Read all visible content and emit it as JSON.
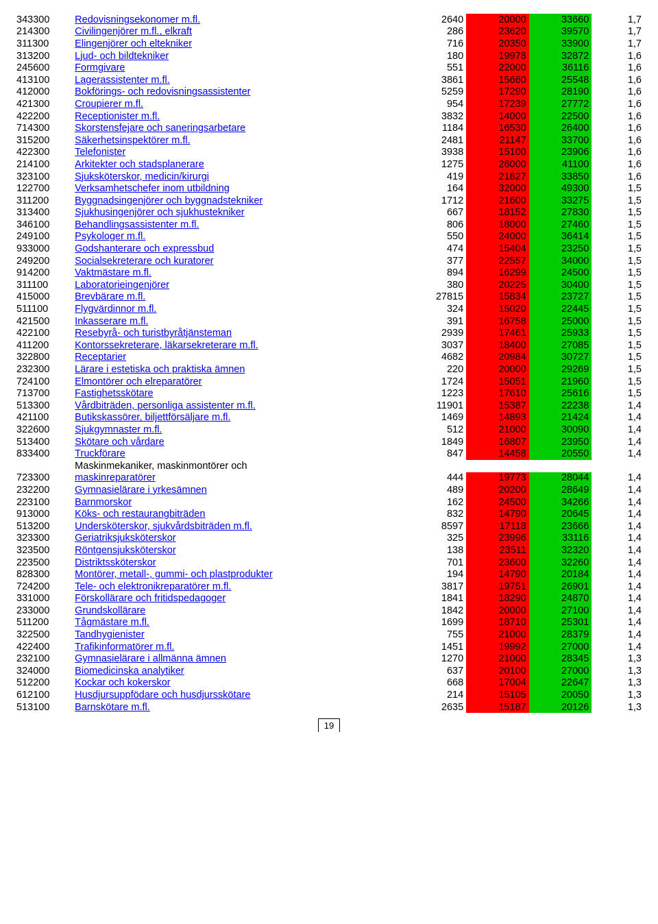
{
  "page_number": "19",
  "colors": {
    "red": "#ff0000",
    "green": "#00cc00",
    "link": "#0000ee"
  },
  "rows": [
    {
      "code": "343300",
      "title": "Redovisningsekonomer m.fl.",
      "v1": "2640",
      "v2": "20000",
      "v3": "33660",
      "ratio": "1,7"
    },
    {
      "code": "214300",
      "title": "Civilingenjörer m.fl., elkraft",
      "v1": "286",
      "v2": "23620",
      "v3": "39570",
      "ratio": "1,7"
    },
    {
      "code": "311300",
      "title": "Elingenjörer och eltekniker",
      "v1": "716",
      "v2": "20350",
      "v3": "33900",
      "ratio": "1,7"
    },
    {
      "code": "313200",
      "title": "Ljud- och bildtekniker",
      "v1": "180",
      "v2": "19978",
      "v3": "32872",
      "ratio": "1,6"
    },
    {
      "code": "245600",
      "title": "Formgivare",
      "v1": "551",
      "v2": "22000",
      "v3": "36116",
      "ratio": "1,6"
    },
    {
      "code": "413100",
      "title": "Lagerassistenter m.fl.",
      "v1": "3861",
      "v2": "15660",
      "v3": "25548",
      "ratio": "1,6"
    },
    {
      "code": "412000",
      "title": "Bokförings- och redovisningsassistenter",
      "v1": "5259",
      "v2": "17290",
      "v3": "28190",
      "ratio": "1,6"
    },
    {
      "code": "421300",
      "title": "Croupierer m.fl.",
      "v1": "954",
      "v2": "17239",
      "v3": "27772",
      "ratio": "1,6"
    },
    {
      "code": "422200",
      "title": "Receptionister m.fl.",
      "v1": "3832",
      "v2": "14000",
      "v3": "22500",
      "ratio": "1,6"
    },
    {
      "code": "714300",
      "title": "Skorstensfejare och saneringsarbetare",
      "v1": "1184",
      "v2": "16530",
      "v3": "26400",
      "ratio": "1,6"
    },
    {
      "code": "315200",
      "title": "Säkerhetsinspektörer m.fl.",
      "v1": "2481",
      "v2": "21147",
      "v3": "33700",
      "ratio": "1,6"
    },
    {
      "code": "422300",
      "title": "Telefonister",
      "v1": "3938",
      "v2": "15100",
      "v3": "23906",
      "ratio": "1,6"
    },
    {
      "code": "214100",
      "title": "Arkitekter och stadsplanerare",
      "v1": "1275",
      "v2": "26000",
      "v3": "41100",
      "ratio": "1,6"
    },
    {
      "code": "323100",
      "title": "Sjuksköterskor, medicin/kirurgi",
      "v1": "419",
      "v2": "21827",
      "v3": "33850",
      "ratio": "1,6"
    },
    {
      "code": "122700",
      "title": "Verksamhetschefer inom utbildning",
      "v1": "164",
      "v2": "32000",
      "v3": "49300",
      "ratio": "1,5"
    },
    {
      "code": "311200",
      "title": "Byggnadsingenjörer och byggnadstekniker",
      "v1": "1712",
      "v2": "21600",
      "v3": "33275",
      "ratio": "1,5"
    },
    {
      "code": "313400",
      "title": "Sjukhusingenjörer och sjukhustekniker",
      "v1": "667",
      "v2": "18152",
      "v3": "27830",
      "ratio": "1,5"
    },
    {
      "code": "346100",
      "title": "Behandlingsassistenter m.fl.",
      "v1": "806",
      "v2": "18000",
      "v3": "27460",
      "ratio": "1,5"
    },
    {
      "code": "249100",
      "title": "Psykologer m.fl.",
      "v1": "550",
      "v2": "24000",
      "v3": "36414",
      "ratio": "1,5"
    },
    {
      "code": "933000",
      "title": "Godshanterare och expressbud",
      "v1": "474",
      "v2": "15404",
      "v3": "23250",
      "ratio": "1,5"
    },
    {
      "code": "249200",
      "title": "Socialsekreterare och kuratorer",
      "v1": "377",
      "v2": "22557",
      "v3": "34000",
      "ratio": "1,5"
    },
    {
      "code": "914200",
      "title": "Vaktmästare m.fl.",
      "v1": "894",
      "v2": "16299",
      "v3": "24500",
      "ratio": "1,5"
    },
    {
      "code": "311100",
      "title": "Laboratorieingenjörer",
      "v1": "380",
      "v2": "20225",
      "v3": "30400",
      "ratio": "1,5"
    },
    {
      "code": "415000",
      "title": "Brevbärare m.fl.",
      "v1": "27815",
      "v2": "15834",
      "v3": "23727",
      "ratio": "1,5"
    },
    {
      "code": "511100",
      "title": "Flygvärdinnor m.fl.",
      "v1": "324",
      "v2": "15020",
      "v3": "22445",
      "ratio": "1,5"
    },
    {
      "code": "421500",
      "title": "Inkasserare m.fl.",
      "v1": "391",
      "v2": "16758",
      "v3": "25000",
      "ratio": "1,5"
    },
    {
      "code": "422100",
      "title": "Resebyrå- och turistbyråtjänsteman",
      "v1": "2939",
      "v2": "17461",
      "v3": "25933",
      "ratio": "1,5"
    },
    {
      "code": "411200",
      "title": "Kontorssekreterare, läkarsekreterare m.fl.",
      "v1": "3037",
      "v2": "18400",
      "v3": "27085",
      "ratio": "1,5"
    },
    {
      "code": "322800",
      "title": "Receptarier",
      "v1": "4682",
      "v2": "20984",
      "v3": "30727",
      "ratio": "1,5"
    },
    {
      "code": "232300",
      "title": "Lärare i estetiska och praktiska ämnen",
      "v1": "220",
      "v2": "20000",
      "v3": "29269",
      "ratio": "1,5"
    },
    {
      "code": "724100",
      "title": "Elmontörer och elreparatörer",
      "v1": "1724",
      "v2": "15051",
      "v3": "21960",
      "ratio": "1,5"
    },
    {
      "code": "713700",
      "title": "Fastighetsskötare",
      "v1": "1223",
      "v2": "17610",
      "v3": "25616",
      "ratio": "1,5"
    },
    {
      "code": "513300",
      "title": "Vårdbiträden, personliga assistenter m.fl.",
      "v1": "11901",
      "v2": "15387",
      "v3": "22238",
      "ratio": "1,4"
    },
    {
      "code": "421100",
      "title": "Butikskassörer, biljettförsäljare m.fl.",
      "v1": "1469",
      "v2": "14893",
      "v3": "21424",
      "ratio": "1,4"
    },
    {
      "code": "322600",
      "title": "Sjukgymnaster m.fl.",
      "v1": "512",
      "v2": "21000",
      "v3": "30090",
      "ratio": "1,4"
    },
    {
      "code": "513400",
      "title": "Skötare och vårdare",
      "v1": "1849",
      "v2": "16807",
      "v3": "23950",
      "ratio": "1,4"
    },
    {
      "code": "833400",
      "title": "Truckförare",
      "v1": "847",
      "v2": "14458",
      "v3": "20550",
      "ratio": "1,4"
    },
    {
      "code": "723300",
      "title": "Maskinmekaniker, maskinmontörer och maskinreparatörer",
      "v1": "444",
      "v2": "19773",
      "v3": "28044",
      "ratio": "1,4",
      "wrap": true
    },
    {
      "code": "232200",
      "title": "Gymnasielärare i yrkesämnen",
      "v1": "489",
      "v2": "20200",
      "v3": "28649",
      "ratio": "1,4"
    },
    {
      "code": "223100",
      "title": "Barnmorskor",
      "v1": "162",
      "v2": "24500",
      "v3": "34266",
      "ratio": "1,4"
    },
    {
      "code": "913000",
      "title": "Köks- och restaurangbiträden",
      "v1": "832",
      "v2": "14790",
      "v3": "20645",
      "ratio": "1,4"
    },
    {
      "code": "513200",
      "title": "Undersköterskor, sjukvårdsbiträden m.fl.",
      "v1": "8597",
      "v2": "17118",
      "v3": "23666",
      "ratio": "1,4"
    },
    {
      "code": "323300",
      "title": "Geriatriksjuksköterskor",
      "v1": "325",
      "v2": "23996",
      "v3": "33116",
      "ratio": "1,4"
    },
    {
      "code": "323500",
      "title": "Röntgensjuksköterskor",
      "v1": "138",
      "v2": "23511",
      "v3": "32320",
      "ratio": "1,4"
    },
    {
      "code": "223500",
      "title": "Distriktssköterskor",
      "v1": "701",
      "v2": "23600",
      "v3": "32260",
      "ratio": "1,4"
    },
    {
      "code": "828300",
      "title": "Montörer, metall-, gummi- och plastprodukter",
      "v1": "194",
      "v2": "14790",
      "v3": "20184",
      "ratio": "1,4"
    },
    {
      "code": "724200",
      "title": "Tele- och elektronikreparatörer m.fl.",
      "v1": "3817",
      "v2": "19751",
      "v3": "26901",
      "ratio": "1,4"
    },
    {
      "code": "331000",
      "title": "Förskollärare och fritidspedagoger",
      "v1": "1841",
      "v2": "18290",
      "v3": "24870",
      "ratio": "1,4"
    },
    {
      "code": "233000",
      "title": "Grundskollärare",
      "v1": "1842",
      "v2": "20000",
      "v3": "27100",
      "ratio": "1,4"
    },
    {
      "code": "511200",
      "title": "Tågmästare m.fl.",
      "v1": "1699",
      "v2": "18710",
      "v3": "25301",
      "ratio": "1,4"
    },
    {
      "code": "322500",
      "title": "Tandhygienister",
      "v1": "755",
      "v2": "21000",
      "v3": "28379",
      "ratio": "1,4"
    },
    {
      "code": "422400",
      "title": "Trafikinformatörer m.fl.",
      "v1": "1451",
      "v2": "19992",
      "v3": "27000",
      "ratio": "1,4"
    },
    {
      "code": "232100",
      "title": "Gymnasielärare i allmänna ämnen",
      "v1": "1270",
      "v2": "21000",
      "v3": "28345",
      "ratio": "1,3"
    },
    {
      "code": "324000",
      "title": "Biomedicinska analytiker",
      "v1": "637",
      "v2": "20100",
      "v3": "27000",
      "ratio": "1,3"
    },
    {
      "code": "512200",
      "title": "Kockar och kokerskor",
      "v1": "668",
      "v2": "17004",
      "v3": "22647",
      "ratio": "1,3"
    },
    {
      "code": "612100",
      "title": "Husdjursuppfödare och husdjursskötare",
      "v1": "214",
      "v2": "15105",
      "v3": "20050",
      "ratio": "1,3"
    },
    {
      "code": "513100",
      "title": "Barnskötare m.fl.",
      "v1": "2635",
      "v2": "15187",
      "v3": "20126",
      "ratio": "1,3"
    }
  ]
}
